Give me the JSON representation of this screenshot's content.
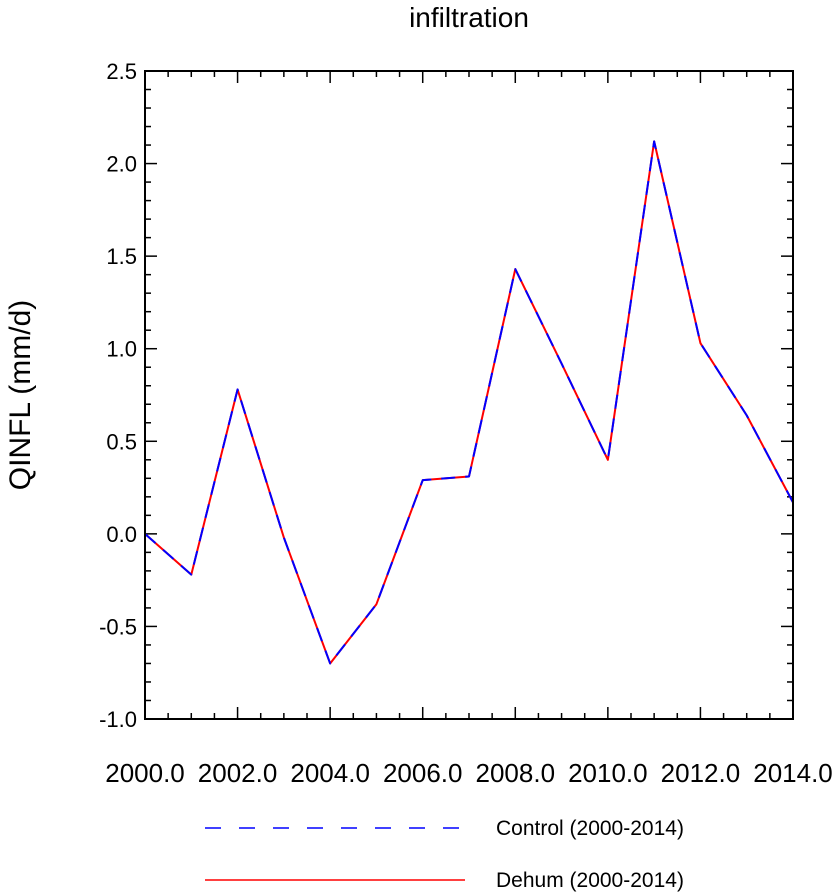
{
  "chart_data": {
    "type": "line",
    "title": "infiltration",
    "xlabel": "",
    "ylabel": "QINFL  (mm/d)",
    "xlim": [
      2000,
      2014
    ],
    "ylim": [
      -1.0,
      2.5
    ],
    "x_ticks": [
      "2000.0",
      "2002.0",
      "2004.0",
      "2006.0",
      "2008.0",
      "2010.0",
      "2012.0",
      "2014.0"
    ],
    "y_ticks": [
      "-1.0",
      "-0.5",
      "0.0",
      "0.5",
      "1.0",
      "1.5",
      "2.0",
      "2.5"
    ],
    "grid": false,
    "legend": "bottom",
    "x": [
      2000,
      2001,
      2002,
      2003,
      2004,
      2005,
      2006,
      2007,
      2008,
      2009,
      2010,
      2011,
      2012,
      2013,
      2014
    ],
    "series": [
      {
        "name": "Control (2000-2014)",
        "color": "#0000ff",
        "style": "dashed",
        "values": [
          0.0,
          -0.22,
          0.78,
          -0.02,
          -0.7,
          -0.38,
          0.29,
          0.31,
          1.43,
          0.92,
          0.4,
          2.12,
          1.03,
          0.64,
          0.17
        ]
      },
      {
        "name": "Dehum (2000-2014)",
        "color": "#ff0000",
        "style": "solid",
        "values": [
          0.0,
          -0.22,
          0.78,
          -0.02,
          -0.7,
          -0.38,
          0.29,
          0.31,
          1.43,
          0.92,
          0.4,
          2.12,
          1.03,
          0.64,
          0.17
        ]
      }
    ]
  }
}
